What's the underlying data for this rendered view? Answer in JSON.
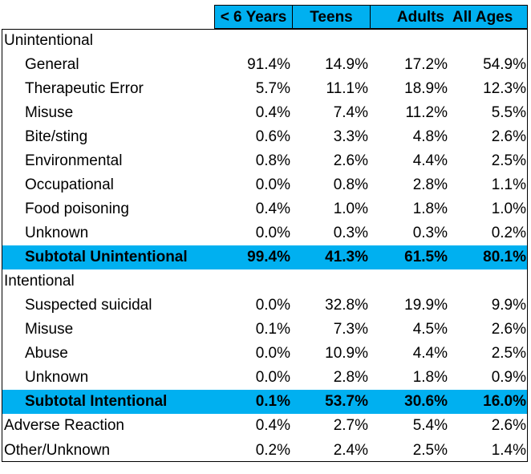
{
  "header": {
    "col1": "< 6 Years",
    "col2": "Teens",
    "col3": "Adults",
    "col4": "All Ages"
  },
  "rows": [
    {
      "label": "Unintentional",
      "type": "section",
      "v": [
        "",
        "",
        "",
        ""
      ]
    },
    {
      "label": "General",
      "type": "item",
      "v": [
        "91.4%",
        "14.9%",
        "17.2%",
        "54.9%"
      ]
    },
    {
      "label": "Therapeutic Error",
      "type": "item",
      "v": [
        "5.7%",
        "11.1%",
        "18.9%",
        "12.3%"
      ]
    },
    {
      "label": "Misuse",
      "type": "item",
      "v": [
        "0.4%",
        "7.4%",
        "11.2%",
        "5.5%"
      ]
    },
    {
      "label": "Bite/sting",
      "type": "item",
      "v": [
        "0.6%",
        "3.3%",
        "4.8%",
        "2.6%"
      ]
    },
    {
      "label": "Environmental",
      "type": "item",
      "v": [
        "0.8%",
        "2.6%",
        "4.4%",
        "2.5%"
      ]
    },
    {
      "label": "Occupational",
      "type": "item",
      "v": [
        "0.0%",
        "0.8%",
        "2.8%",
        "1.1%"
      ]
    },
    {
      "label": "Food poisoning",
      "type": "item",
      "v": [
        "0.4%",
        "1.0%",
        "1.8%",
        "1.0%"
      ]
    },
    {
      "label": "Unknown",
      "type": "item",
      "v": [
        "0.0%",
        "0.3%",
        "0.3%",
        "0.2%"
      ]
    },
    {
      "label": "Subtotal Unintentional",
      "type": "subtotal",
      "v": [
        "99.4%",
        "41.3%",
        "61.5%",
        "80.1%"
      ]
    },
    {
      "label": "Intentional",
      "type": "section",
      "v": [
        "",
        "",
        "",
        ""
      ]
    },
    {
      "label": "Suspected suicidal",
      "type": "item",
      "v": [
        "0.0%",
        "32.8%",
        "19.9%",
        "9.9%"
      ]
    },
    {
      "label": "Misuse",
      "type": "item",
      "v": [
        "0.1%",
        "7.3%",
        "4.5%",
        "2.6%"
      ]
    },
    {
      "label": "Abuse",
      "type": "item",
      "v": [
        "0.0%",
        "10.9%",
        "4.4%",
        "2.5%"
      ]
    },
    {
      "label": "Unknown",
      "type": "item",
      "v": [
        "0.0%",
        "2.8%",
        "1.8%",
        "0.9%"
      ]
    },
    {
      "label": "Subtotal Intentional",
      "type": "subtotal",
      "v": [
        "0.1%",
        "53.7%",
        "30.6%",
        "16.0%"
      ]
    },
    {
      "label": "Adverse Reaction",
      "type": "section",
      "v": [
        "0.4%",
        "2.7%",
        "5.4%",
        "2.6%"
      ]
    },
    {
      "label": "Other/Unknown",
      "type": "section",
      "v": [
        "0.2%",
        "2.4%",
        "2.5%",
        "1.4%"
      ]
    }
  ]
}
